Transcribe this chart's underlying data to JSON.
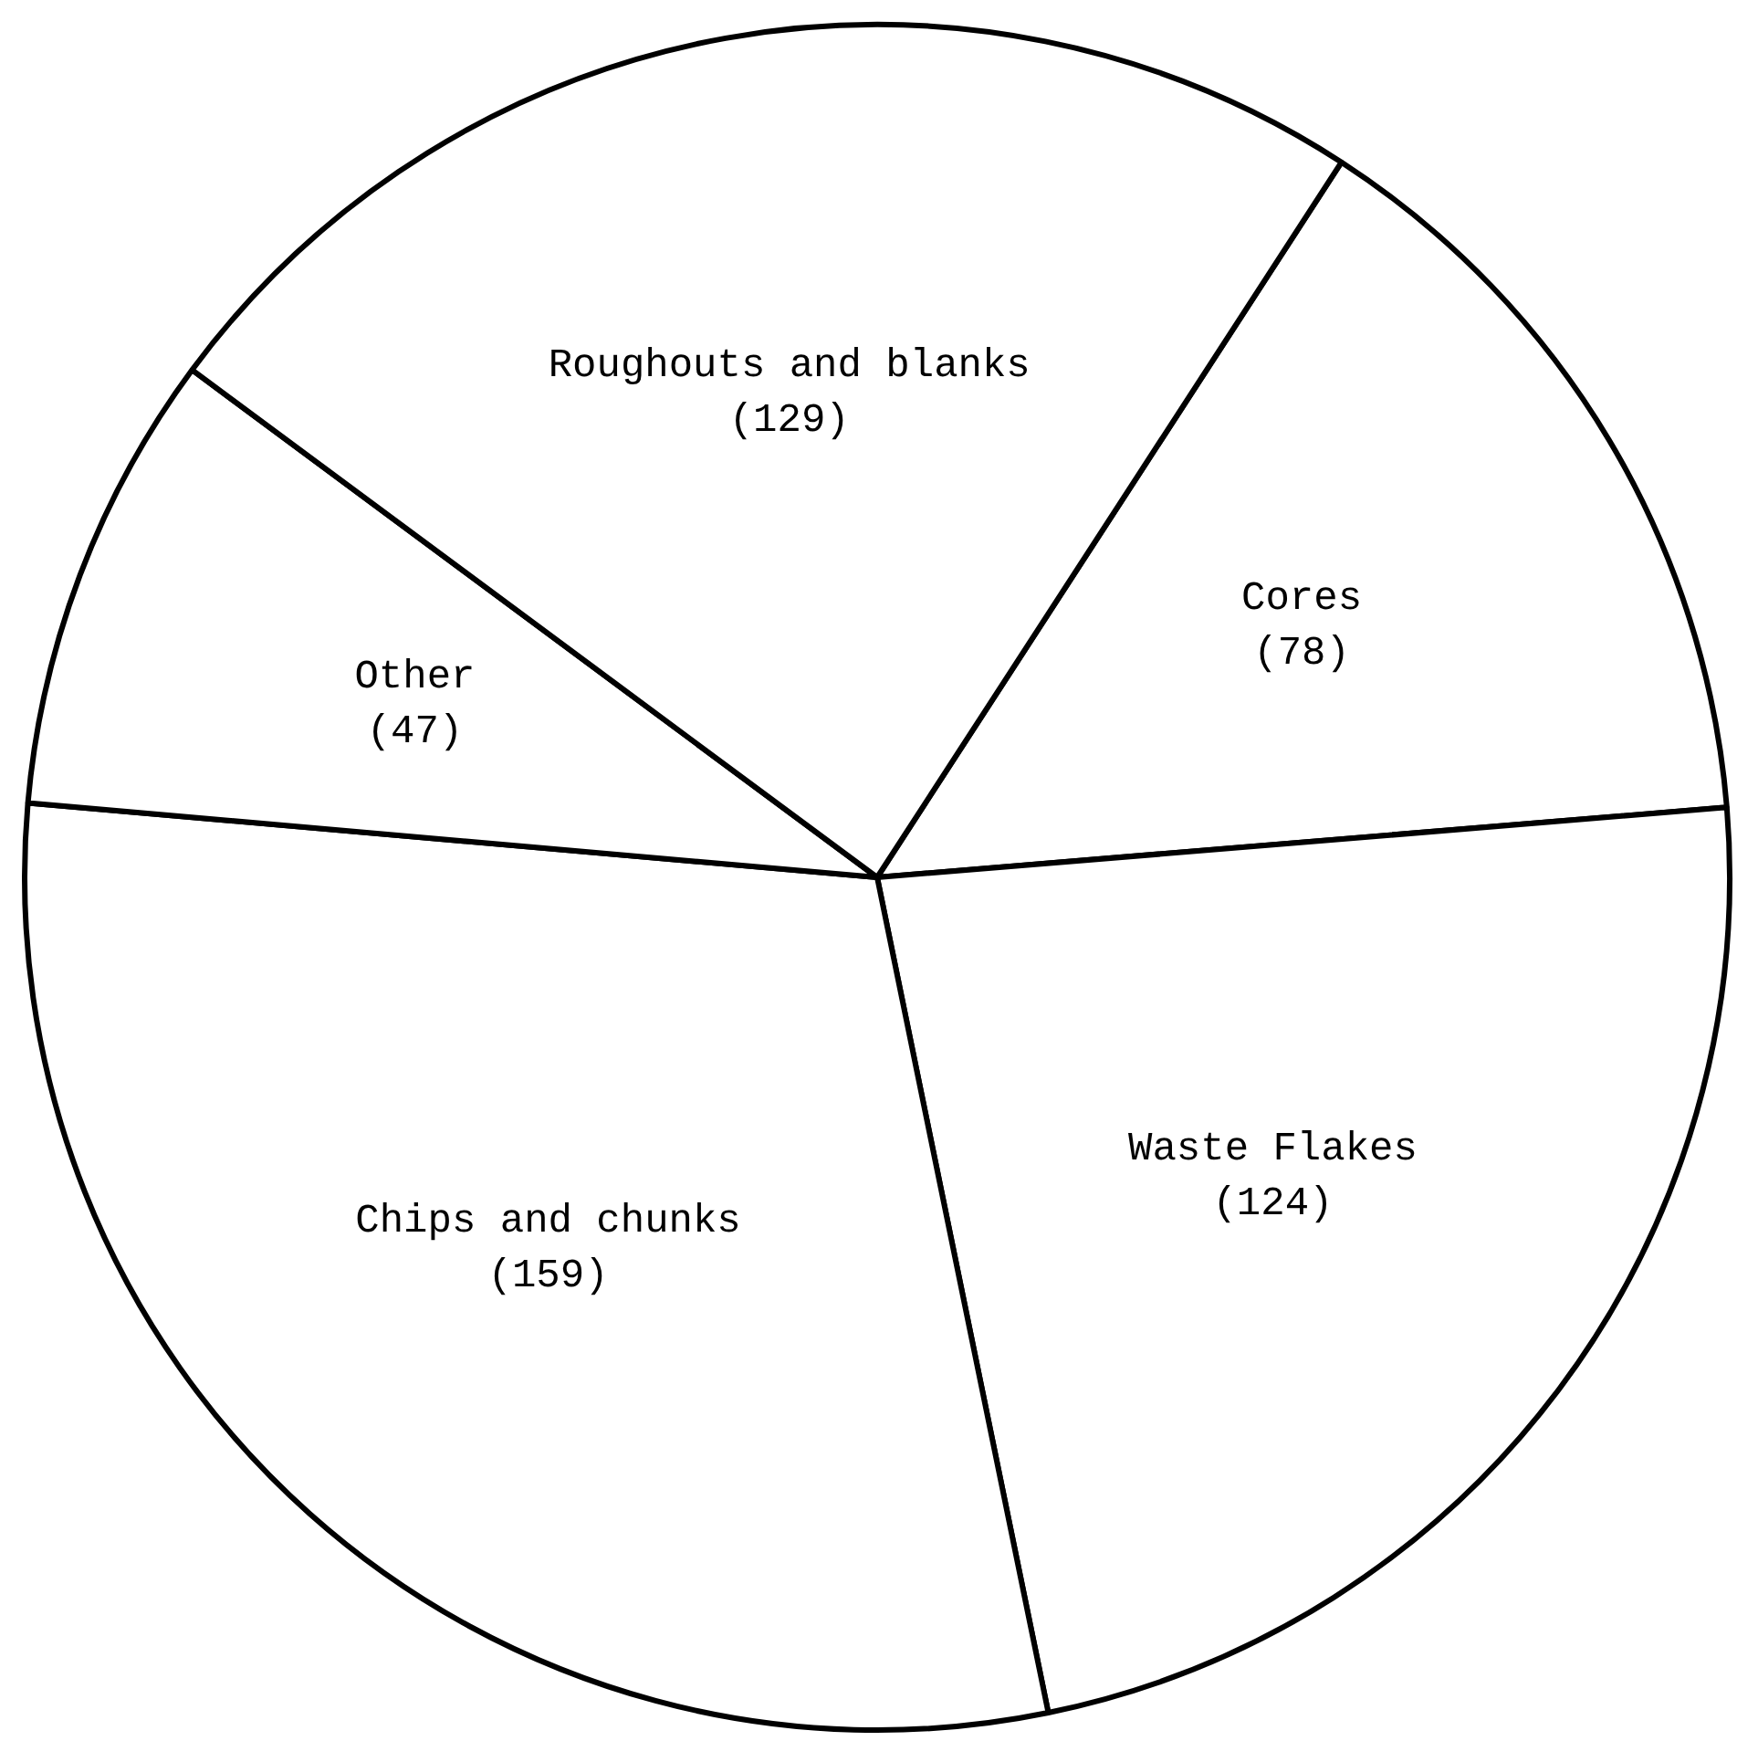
{
  "chart_data": {
    "type": "pie",
    "categories": [
      "Cores",
      "Waste Flakes",
      "Chips and chunks",
      "Other",
      "Roughouts and blanks"
    ],
    "values": [
      78,
      124,
      159,
      47,
      129
    ],
    "value_labels": [
      "(78)",
      "(124)",
      "(159)",
      "(47)",
      "(129)"
    ],
    "colors": [
      "#ffffff",
      "#ffffff",
      "#ffffff",
      "#ffffff",
      "#ffffff"
    ],
    "legend": false
  }
}
